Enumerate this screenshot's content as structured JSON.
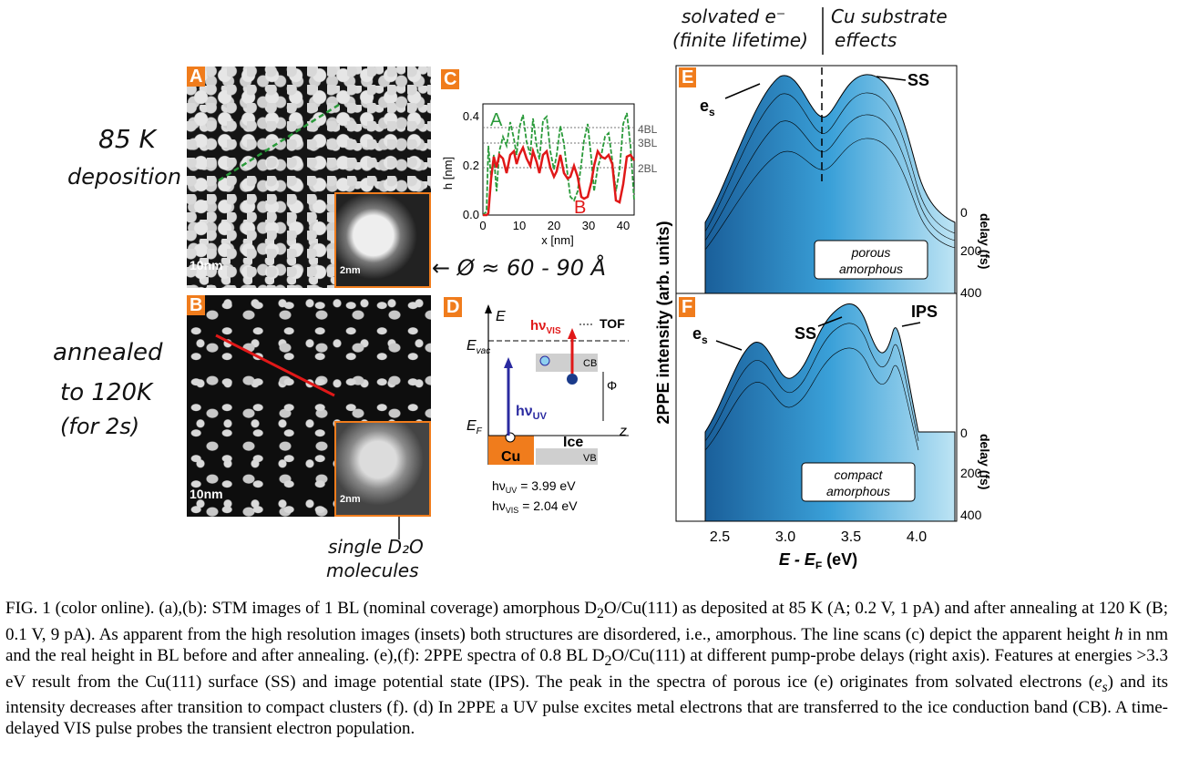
{
  "handwritten": {
    "deposition_temp": "85 K",
    "deposition_word": "deposition",
    "annealed_1": "annealed",
    "annealed_2": "to 120K",
    "annealed_3": "(for 2s)",
    "diameter_note": "Ø ≈ 60 - 90 Å",
    "single_1": "single D₂O",
    "single_2": "molecules",
    "solvated_1": "solvated e⁻",
    "solvated_2": "(finite lifetime)",
    "substrate_1": "Cu substrate",
    "substrate_2": "effects"
  },
  "panels": {
    "a": {
      "tag": "A",
      "scale": "10nm",
      "inset_scale": "2nm"
    },
    "b": {
      "tag": "B",
      "scale": "10nm",
      "inset_scale": "2nm"
    },
    "c": {
      "tag": "C",
      "ylabel": "h [nm]",
      "xlabel": "x [nm]",
      "yticks": [
        "0.0",
        "0.2",
        "0.4"
      ],
      "xticks": [
        "0",
        "10",
        "20",
        "30",
        "40"
      ],
      "bl_labels": [
        "4BL",
        "3BL",
        "2BL"
      ],
      "label_a": "A",
      "label_b": "B"
    },
    "d": {
      "tag": "D",
      "e_axis": "E",
      "evac": "E",
      "evac_sub": "vac",
      "ef": "E",
      "ef_sub": "F",
      "z_axis": "z",
      "hv_vis": "hν",
      "hv_vis_sub": "VIS",
      "hv_uv": "hν",
      "hv_uv_sub": "UV",
      "tof": "TOF",
      "cb": "CB",
      "vb": "VB",
      "phi": "Φ",
      "cu": "Cu",
      "ice": "Ice",
      "uv_eq": "hν",
      "uv_eq_sub": "UV",
      "uv_eq_val": " = 3.99 eV",
      "vis_eq": "hν",
      "vis_eq_sub": "VIS",
      "vis_eq_val": " = 2.04 eV"
    },
    "e": {
      "tag": "E",
      "es": "e",
      "es_sub": "s",
      "ss": "SS",
      "box_1": "porous",
      "box_2": "amorphous",
      "delay_label": "delay (fs)",
      "delay_ticks": [
        "0",
        "200",
        "400"
      ]
    },
    "f": {
      "tag": "F",
      "es": "e",
      "es_sub": "s",
      "ss": "SS",
      "ips": "IPS",
      "box_1": "compact",
      "box_2": "amorphous",
      "delay_label": "delay (fs)",
      "delay_ticks": [
        "0",
        "200",
        "400"
      ]
    },
    "ef_axis": {
      "ylabel": "2PPE intensity (arb. units)",
      "xlabel": "E - E",
      "xlabel_sub": "F",
      "xlabel_unit": " (eV)",
      "xticks": [
        "2.5",
        "3.0",
        "3.5",
        "4.0"
      ]
    }
  },
  "colors": {
    "orange": "#f07c1c",
    "green": "#2a9a3a",
    "red": "#e01818",
    "blue": "#2a2aa0",
    "cyan": "#4db8e8"
  },
  "caption": {
    "p1": "FIG. 1 (color online).   (a),(b): STM images of 1 BL (nominal coverage) amorphous D",
    "p2": "O/Cu(111) as deposited at 85 K (A; 0.2 V, 1 pA) and after annealing at 120 K (B; 0.1 V, 9 pA). As apparent from the high resolution images (insets) both structures are disordered, i.e., amorphous. The line scans (c) depict the apparent height ",
    "h": "h",
    "p3": " in nm and the real height in BL before and after annealing. (e),(f): 2PPE spectra of 0.8 BL D",
    "p4": "O/Cu(111) at different pump-probe delays (right axis). Features at energies >3.3 eV result from the Cu(111) surface (SS) and image potential state (IPS). The peak in the spectra of porous ice (e) originates from solvated electrons (",
    "es": "e",
    "es_sub": "s",
    "p5": ") and its intensity decreases after transition to compact clusters (f). (d) In 2PPE a UV pulse excites metal electrons that are transferred to the ice conduction band (CB). A time-delayed VIS pulse probes the transient electron population.",
    "sub2": "2"
  }
}
